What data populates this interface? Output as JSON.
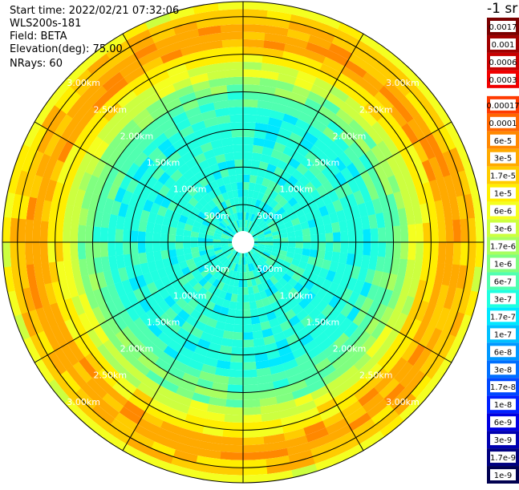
{
  "header": {
    "start_time": "Start time: 2022/02/21 07:32:06",
    "device": "WLS200s-181",
    "field": "Field: BETA",
    "elevation": "Elevation(deg): 75.00",
    "nrays": "NRays: 60"
  },
  "chart_data": {
    "type": "heatmap",
    "projection": "polar",
    "n_rays": 60,
    "range_rings": [
      {
        "value": 500,
        "label": "500m"
      },
      {
        "value": 1000,
        "label": "1.00km"
      },
      {
        "value": 1500,
        "label": "1.50km"
      },
      {
        "value": 2000,
        "label": "2.00km"
      },
      {
        "value": 2500,
        "label": "2.50km"
      },
      {
        "value": 3000,
        "label": "3.00km"
      }
    ],
    "max_range": 3200,
    "colorbar": {
      "unit_label": "-1 sr",
      "entries": [
        {
          "label": "0.0017",
          "color": "#7a0000"
        },
        {
          "label": "0.001",
          "color": "#a00000"
        },
        {
          "label": "0.0006",
          "color": "#c80000"
        },
        {
          "label": "0.0003",
          "color": "#f00000"
        },
        {
          "label": "0.00017",
          "color": "#ff3a00"
        },
        {
          "label": "0.0001",
          "color": "#ff6600"
        },
        {
          "label": "6e-5",
          "color": "#ff8800"
        },
        {
          "label": "3e-5",
          "color": "#ffaa00"
        },
        {
          "label": "1.7e-5",
          "color": "#ffcc00"
        },
        {
          "label": "1e-5",
          "color": "#ffee00"
        },
        {
          "label": "6e-6",
          "color": "#f4ff20"
        },
        {
          "label": "3e-6",
          "color": "#ccff40"
        },
        {
          "label": "1.7e-6",
          "color": "#a8ff60"
        },
        {
          "label": "1e-6",
          "color": "#80ff80"
        },
        {
          "label": "6e-7",
          "color": "#50ffb0"
        },
        {
          "label": "3e-7",
          "color": "#20ffe0"
        },
        {
          "label": "1.7e-7",
          "color": "#00e8ff"
        },
        {
          "label": "1e-7",
          "color": "#00c0ff"
        },
        {
          "label": "6e-8",
          "color": "#0098ff"
        },
        {
          "label": "3e-8",
          "color": "#0070ff"
        },
        {
          "label": "1.7e-8",
          "color": "#0048ff"
        },
        {
          "label": "1e-8",
          "color": "#0020ff"
        },
        {
          "label": "6e-9",
          "color": "#0000e0"
        },
        {
          "label": "3e-9",
          "color": "#0000b0"
        },
        {
          "label": "1.7e-9",
          "color": "#000080"
        },
        {
          "label": "1e-9",
          "color": "#000050"
        }
      ]
    },
    "range_profile": [
      {
        "range": 100,
        "class": "3e-7"
      },
      {
        "range": 1500,
        "class": "3e-7"
      },
      {
        "range": 1750,
        "class": "6e-7"
      },
      {
        "range": 2000,
        "class": "1e-6"
      },
      {
        "range": 2200,
        "class": "3e-6"
      },
      {
        "range": 2400,
        "class": "1e-5"
      },
      {
        "range": 2600,
        "class": "3e-5"
      },
      {
        "range": 2850,
        "class": "1.7e-5"
      },
      {
        "range": 3050,
        "class": "6e-6"
      },
      {
        "range": 3200,
        "class": "3e-6"
      }
    ]
  }
}
